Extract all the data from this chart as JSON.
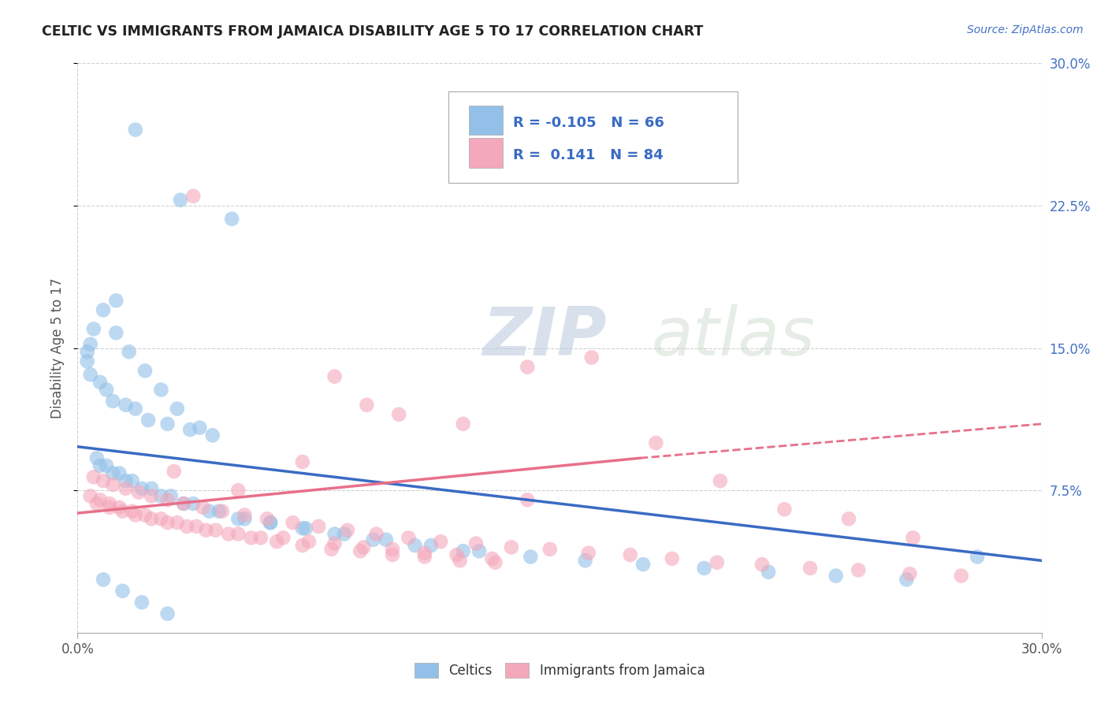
{
  "title": "CELTIC VS IMMIGRANTS FROM JAMAICA DISABILITY AGE 5 TO 17 CORRELATION CHART",
  "source_text": "Source: ZipAtlas.com",
  "ylabel": "Disability Age 5 to 17",
  "xlim": [
    0.0,
    0.3
  ],
  "ylim": [
    0.0,
    0.3
  ],
  "x_tick_vals": [
    0.0,
    0.3
  ],
  "x_tick_labels": [
    "0.0%",
    "30.0%"
  ],
  "y_tick_vals": [
    0.075,
    0.15,
    0.225,
    0.3
  ],
  "y_tick_labels": [
    "7.5%",
    "15.0%",
    "22.5%",
    "30.0%"
  ],
  "celtics_color": "#92C0E8",
  "jamaica_color": "#F4A8BB",
  "celtics_line_color": "#3A6BC4",
  "jamaica_line_color": "#E8708A",
  "legend_R1": "-0.105",
  "legend_N1": "66",
  "legend_R2": " 0.141",
  "legend_N2": "84",
  "watermark_zip": "ZIP",
  "watermark_atlas": "atlas",
  "celtics_x": [
    0.018,
    0.032,
    0.048,
    0.012,
    0.008,
    0.005,
    0.004,
    0.003,
    0.003,
    0.004,
    0.007,
    0.009,
    0.011,
    0.015,
    0.018,
    0.022,
    0.028,
    0.035,
    0.042,
    0.012,
    0.016,
    0.021,
    0.026,
    0.031,
    0.038,
    0.006,
    0.009,
    0.013,
    0.017,
    0.023,
    0.029,
    0.036,
    0.044,
    0.052,
    0.06,
    0.07,
    0.08,
    0.092,
    0.105,
    0.12,
    0.007,
    0.011,
    0.015,
    0.02,
    0.026,
    0.033,
    0.041,
    0.05,
    0.06,
    0.071,
    0.083,
    0.096,
    0.11,
    0.125,
    0.141,
    0.158,
    0.176,
    0.195,
    0.215,
    0.236,
    0.258,
    0.28,
    0.008,
    0.014,
    0.02,
    0.028
  ],
  "celtics_y": [
    0.265,
    0.228,
    0.218,
    0.175,
    0.17,
    0.16,
    0.152,
    0.148,
    0.143,
    0.136,
    0.132,
    0.128,
    0.122,
    0.12,
    0.118,
    0.112,
    0.11,
    0.107,
    0.104,
    0.158,
    0.148,
    0.138,
    0.128,
    0.118,
    0.108,
    0.092,
    0.088,
    0.084,
    0.08,
    0.076,
    0.072,
    0.068,
    0.064,
    0.06,
    0.058,
    0.055,
    0.052,
    0.049,
    0.046,
    0.043,
    0.088,
    0.084,
    0.08,
    0.076,
    0.072,
    0.068,
    0.064,
    0.06,
    0.058,
    0.055,
    0.052,
    0.049,
    0.046,
    0.043,
    0.04,
    0.038,
    0.036,
    0.034,
    0.032,
    0.03,
    0.028,
    0.04,
    0.028,
    0.022,
    0.016,
    0.01
  ],
  "jamaica_x": [
    0.004,
    0.007,
    0.01,
    0.013,
    0.017,
    0.021,
    0.026,
    0.031,
    0.037,
    0.043,
    0.05,
    0.057,
    0.064,
    0.072,
    0.08,
    0.089,
    0.098,
    0.108,
    0.118,
    0.129,
    0.005,
    0.008,
    0.011,
    0.015,
    0.019,
    0.023,
    0.028,
    0.033,
    0.039,
    0.045,
    0.052,
    0.059,
    0.067,
    0.075,
    0.084,
    0.093,
    0.103,
    0.113,
    0.124,
    0.135,
    0.147,
    0.159,
    0.172,
    0.185,
    0.199,
    0.213,
    0.228,
    0.243,
    0.259,
    0.275,
    0.006,
    0.01,
    0.014,
    0.018,
    0.023,
    0.028,
    0.034,
    0.04,
    0.047,
    0.054,
    0.062,
    0.07,
    0.079,
    0.088,
    0.098,
    0.108,
    0.119,
    0.13,
    0.036,
    0.14,
    0.09,
    0.18,
    0.12,
    0.2,
    0.16,
    0.24,
    0.08,
    0.26,
    0.1,
    0.22,
    0.14,
    0.07,
    0.05,
    0.03
  ],
  "jamaica_y": [
    0.072,
    0.07,
    0.068,
    0.066,
    0.064,
    0.062,
    0.06,
    0.058,
    0.056,
    0.054,
    0.052,
    0.05,
    0.05,
    0.048,
    0.047,
    0.045,
    0.044,
    0.042,
    0.041,
    0.039,
    0.082,
    0.08,
    0.078,
    0.076,
    0.074,
    0.072,
    0.07,
    0.068,
    0.066,
    0.064,
    0.062,
    0.06,
    0.058,
    0.056,
    0.054,
    0.052,
    0.05,
    0.048,
    0.047,
    0.045,
    0.044,
    0.042,
    0.041,
    0.039,
    0.037,
    0.036,
    0.034,
    0.033,
    0.031,
    0.03,
    0.068,
    0.066,
    0.064,
    0.062,
    0.06,
    0.058,
    0.056,
    0.054,
    0.052,
    0.05,
    0.048,
    0.046,
    0.044,
    0.043,
    0.041,
    0.04,
    0.038,
    0.037,
    0.23,
    0.14,
    0.12,
    0.1,
    0.11,
    0.08,
    0.145,
    0.06,
    0.135,
    0.05,
    0.115,
    0.065,
    0.07,
    0.09,
    0.075,
    0.085
  ],
  "celtics_line": {
    "x0": 0.0,
    "y0": 0.098,
    "x1": 0.3,
    "y1": 0.038
  },
  "jamaica_line_solid": {
    "x0": 0.0,
    "y0": 0.063,
    "x1": 0.175,
    "y1": 0.092
  },
  "jamaica_line_dash": {
    "x0": 0.175,
    "y0": 0.092,
    "x1": 0.3,
    "y1": 0.11
  }
}
